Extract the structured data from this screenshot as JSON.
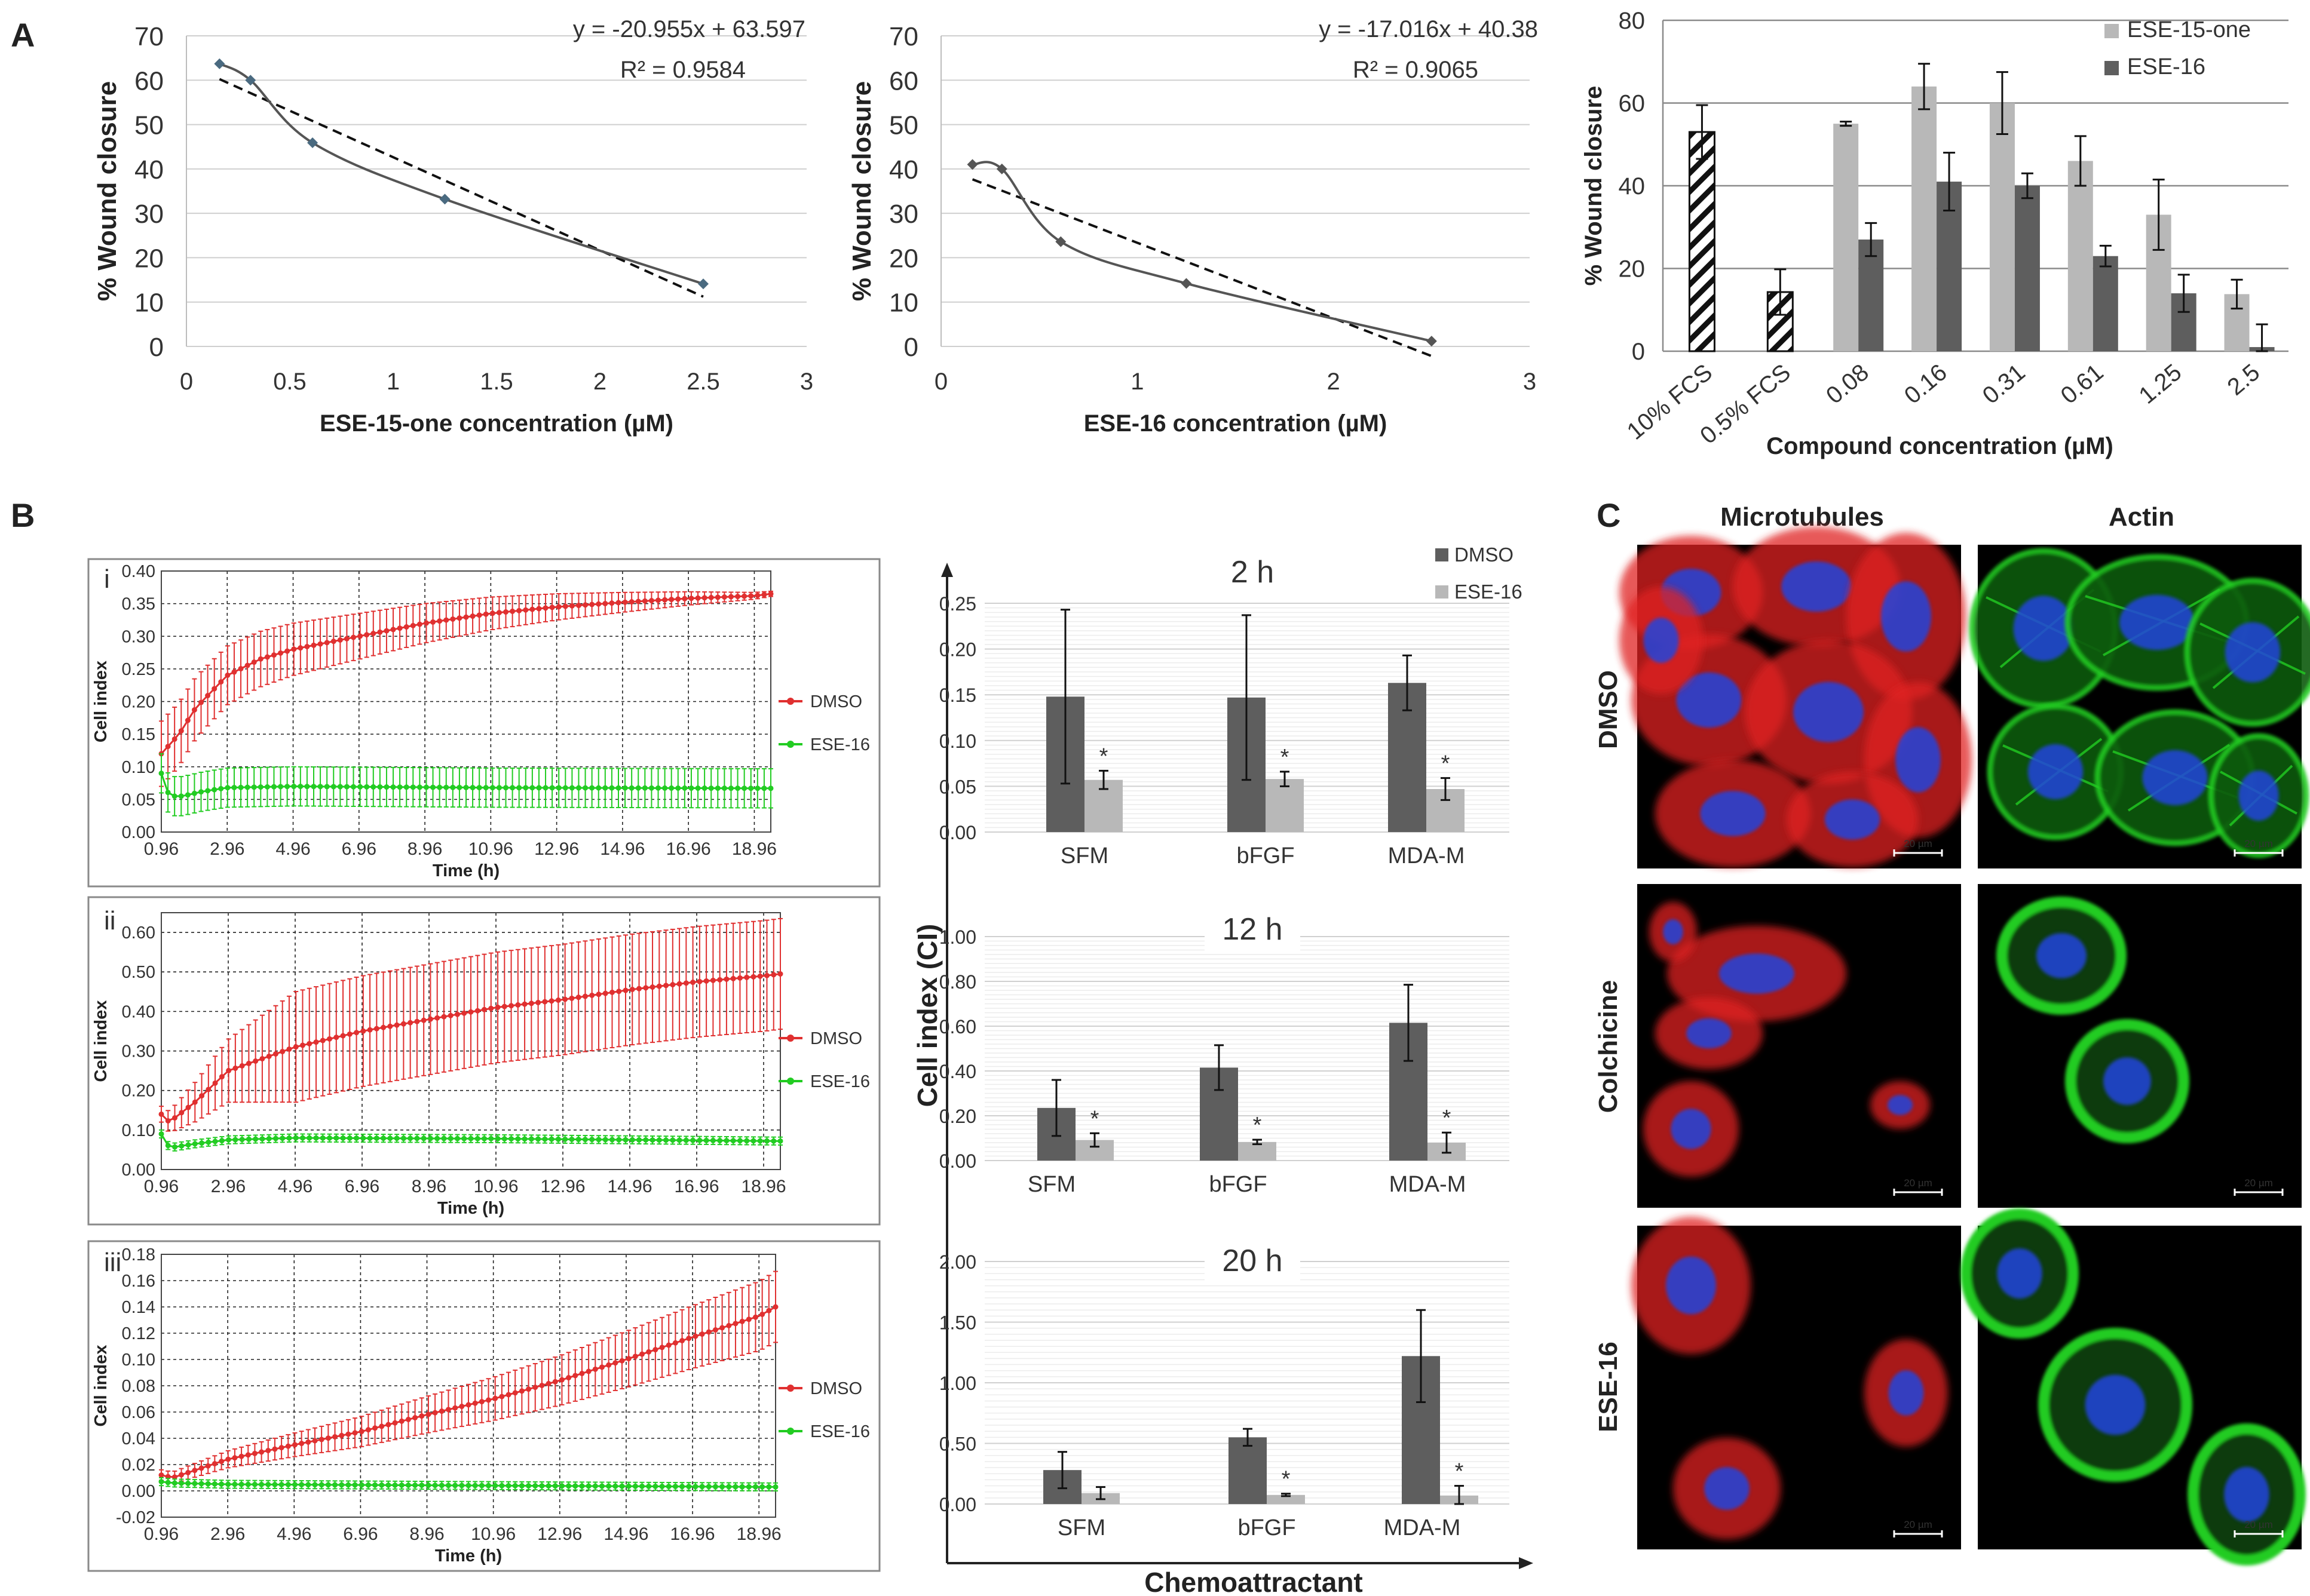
{
  "panel_labels": {
    "A": "A",
    "B": "B",
    "C": "C"
  },
  "micrograph": {
    "columns": [
      "Microtubules",
      "Actin"
    ],
    "rows": [
      "DMSO",
      "Colchicine",
      "ESE-16"
    ],
    "scale_bar": "20 µm",
    "colors": {
      "microtubules": "#e02020",
      "actin": "#22cc22",
      "nucleus": "#2244dd",
      "background": "#000000"
    }
  },
  "chart_data": [
    {
      "id": "A1",
      "type": "scatter",
      "x": [
        0.16,
        0.31,
        0.61,
        1.25,
        2.5
      ],
      "y": [
        63.7,
        60.0,
        45.9,
        33.2,
        14.1
      ],
      "trendline": {
        "equation": "y = -20.955x + 63.597",
        "r2_label": "R² = 0.9584",
        "slope": -20.955,
        "intercept": 63.597
      },
      "xlabel": "ESE-15-one concentration (µM)",
      "ylabel": "% Wound closure",
      "xlim": [
        0,
        3
      ],
      "ylim": [
        0,
        70
      ],
      "xticks": [
        "0",
        "0.5",
        "1",
        "1.5",
        "2",
        "2.5",
        "3"
      ],
      "yticks": [
        "0",
        "10",
        "20",
        "30",
        "40",
        "50",
        "60",
        "70"
      ],
      "grid": "horizontal",
      "color": "#4a6a80"
    },
    {
      "id": "A2",
      "type": "scatter",
      "x": [
        0.16,
        0.31,
        0.61,
        1.25,
        2.5
      ],
      "y": [
        41.0,
        40.0,
        23.6,
        14.2,
        1.2
      ],
      "trendline": {
        "equation": "y = -17.016x + 40.38",
        "r2_label": "R² = 0.9065",
        "slope": -17.016,
        "intercept": 40.38
      },
      "xlabel": "ESE-16 concentration (µM)",
      "ylabel": "% Wound closure",
      "xlim": [
        0,
        3
      ],
      "ylim": [
        0,
        70
      ],
      "xticks": [
        "0",
        "1",
        "2",
        "3"
      ],
      "yticks": [
        "0",
        "10",
        "20",
        "30",
        "40",
        "50",
        "60",
        "70"
      ],
      "grid": "horizontal",
      "color": "#555555"
    },
    {
      "id": "A3",
      "type": "bar",
      "controls": {
        "categories": [
          "10% FCS",
          "0.5% FCS"
        ],
        "values": [
          53.0,
          14.3
        ],
        "errors": [
          6.5,
          5.5
        ]
      },
      "categories": [
        "0.08",
        "0.16",
        "0.31",
        "0.61",
        "1.25",
        "2.5"
      ],
      "series": [
        {
          "name": "ESE-15-one",
          "values": [
            55.0,
            64.0,
            60.0,
            46.0,
            33.0,
            13.8
          ],
          "errors": [
            0.5,
            5.5,
            7.5,
            6.0,
            8.5,
            3.5
          ],
          "color": "#b8b8b8"
        },
        {
          "name": "ESE-16",
          "values": [
            27.0,
            41.0,
            40.0,
            23.0,
            14.0,
            1.0
          ],
          "errors": [
            4.0,
            7.0,
            3.0,
            2.5,
            4.5,
            5.5
          ],
          "color": "#5e5e5e"
        }
      ],
      "xlabel": "Compound concentration (µM)",
      "ylabel": "% Wound closure",
      "ylim": [
        0,
        80
      ],
      "yticks": [
        "0",
        "20",
        "40",
        "60",
        "80"
      ],
      "grid": "horizontal",
      "legend": "top-right"
    },
    {
      "id": "Bi",
      "type": "line",
      "panel_tag": "i",
      "x_range": [
        0.96,
        19.46
      ],
      "xticks": [
        "0.96",
        "2.96",
        "4.96",
        "6.96",
        "8.96",
        "10.96",
        "12.96",
        "14.96",
        "16.96",
        "18.96"
      ],
      "ylim": [
        0,
        0.4
      ],
      "yticks": [
        "0.00",
        "0.05",
        "0.10",
        "0.15",
        "0.20",
        "0.25",
        "0.30",
        "0.35",
        "0.40"
      ],
      "xlabel": "Time (h)",
      "ylabel": "Cell index",
      "series": [
        {
          "name": "DMSO",
          "color": "#e03030",
          "anchors": [
            [
              0.96,
              0.12
            ],
            [
              1.5,
              0.15
            ],
            [
              2.0,
              0.19
            ],
            [
              2.96,
              0.24
            ],
            [
              3.96,
              0.265
            ],
            [
              4.96,
              0.28
            ],
            [
              6.96,
              0.3
            ],
            [
              8.96,
              0.32
            ],
            [
              10.96,
              0.335
            ],
            [
              12.96,
              0.345
            ],
            [
              14.96,
              0.352
            ],
            [
              16.96,
              0.358
            ],
            [
              18.96,
              0.362
            ],
            [
              19.46,
              0.365
            ]
          ],
          "error": 0.05,
          "error_end": 0.004
        },
        {
          "name": "ESE-16",
          "color": "#22cc22",
          "anchors": [
            [
              0.96,
              0.09
            ],
            [
              1.2,
              0.055
            ],
            [
              1.6,
              0.055
            ],
            [
              2.2,
              0.062
            ],
            [
              2.96,
              0.068
            ],
            [
              4.96,
              0.07
            ],
            [
              10.96,
              0.068
            ],
            [
              19.46,
              0.067
            ]
          ],
          "error": 0.03
        }
      ],
      "legend": "right"
    },
    {
      "id": "Bii",
      "type": "line",
      "panel_tag": "ii",
      "x_range": [
        0.96,
        19.46
      ],
      "xticks": [
        "0.96",
        "2.96",
        "4.96",
        "6.96",
        "8.96",
        "10.96",
        "12.96",
        "14.96",
        "16.96",
        "18.96"
      ],
      "ylim": [
        0,
        0.65
      ],
      "yticks": [
        "0.00",
        "0.10",
        "0.20",
        "0.30",
        "0.40",
        "0.50",
        "0.60"
      ],
      "xlabel": "Time (h)",
      "ylabel": "Cell index",
      "series": [
        {
          "name": "DMSO",
          "color": "#e03030",
          "anchors": [
            [
              0.96,
              0.14
            ],
            [
              1.2,
              0.12
            ],
            [
              1.96,
              0.17
            ],
            [
              2.96,
              0.25
            ],
            [
              4.96,
              0.31
            ],
            [
              6.96,
              0.35
            ],
            [
              8.96,
              0.38
            ],
            [
              10.96,
              0.41
            ],
            [
              12.96,
              0.43
            ],
            [
              14.96,
              0.455
            ],
            [
              16.96,
              0.475
            ],
            [
              18.96,
              0.49
            ],
            [
              19.46,
              0.495
            ]
          ],
          "error": 0.14,
          "error_start": 0.02
        },
        {
          "name": "ESE-16",
          "color": "#22cc22",
          "anchors": [
            [
              0.96,
              0.09
            ],
            [
              1.2,
              0.055
            ],
            [
              1.96,
              0.065
            ],
            [
              2.96,
              0.075
            ],
            [
              4.96,
              0.08
            ],
            [
              10.96,
              0.078
            ],
            [
              19.46,
              0.072
            ]
          ],
          "error": 0.01
        }
      ],
      "legend": "right"
    },
    {
      "id": "Biii",
      "type": "line",
      "panel_tag": "iii",
      "x_range": [
        0.96,
        19.46
      ],
      "xticks": [
        "0.96",
        "2.96",
        "4.96",
        "6.96",
        "8.96",
        "10.96",
        "12.96",
        "14.96",
        "16.96",
        "18.96"
      ],
      "ylim": [
        -0.02,
        0.18
      ],
      "yticks": [
        "-0.02",
        "0.00",
        "0.02",
        "0.04",
        "0.06",
        "0.08",
        "0.10",
        "0.12",
        "0.14",
        "0.16",
        "0.18"
      ],
      "xlabel": "Time (h)",
      "ylabel": "Cell index",
      "series": [
        {
          "name": "DMSO",
          "color": "#e03030",
          "anchors": [
            [
              0.96,
              0.012
            ],
            [
              1.3,
              0.01
            ],
            [
              2.96,
              0.024
            ],
            [
              4.96,
              0.035
            ],
            [
              6.96,
              0.045
            ],
            [
              8.96,
              0.058
            ],
            [
              10.96,
              0.07
            ],
            [
              12.96,
              0.084
            ],
            [
              14.96,
              0.1
            ],
            [
              16.96,
              0.117
            ],
            [
              18.96,
              0.133
            ],
            [
              19.46,
              0.14
            ]
          ],
          "error": 0.004,
          "error_end": 0.027
        },
        {
          "name": "ESE-16",
          "color": "#22cc22",
          "anchors": [
            [
              0.96,
              0.007
            ],
            [
              1.3,
              0.006
            ],
            [
              2.96,
              0.005
            ],
            [
              10.96,
              0.004
            ],
            [
              19.46,
              0.003
            ]
          ],
          "error": 0.003
        }
      ],
      "legend": "right"
    },
    {
      "id": "B2h",
      "type": "bar",
      "title": "2 h",
      "categories": [
        "SFM",
        "bFGF",
        "MDA-M"
      ],
      "series": [
        {
          "name": "DMSO",
          "values": [
            0.148,
            0.147,
            0.163
          ],
          "errors": [
            0.095,
            0.09,
            0.03
          ],
          "color": "#5e5e5e"
        },
        {
          "name": "ESE-16",
          "values": [
            0.057,
            0.058,
            0.047
          ],
          "errors": [
            0.01,
            0.008,
            0.012
          ],
          "color": "#b8b8b8"
        }
      ],
      "significance": [
        "*",
        "*",
        "*"
      ],
      "ylim": [
        0,
        0.25
      ],
      "yticks": [
        "0.00",
        "0.05",
        "0.10",
        "0.15",
        "0.20",
        "0.25"
      ],
      "legend": "top-right"
    },
    {
      "id": "B12h",
      "type": "bar",
      "title": "12 h",
      "categories": [
        "SFM",
        "bFGF",
        "MDA-M"
      ],
      "series": [
        {
          "name": "DMSO",
          "values": [
            0.235,
            0.415,
            0.615
          ],
          "errors": [
            0.125,
            0.1,
            0.17
          ],
          "color": "#5e5e5e"
        },
        {
          "name": "ESE-16",
          "values": [
            0.092,
            0.083,
            0.08
          ],
          "errors": [
            0.03,
            0.01,
            0.045
          ],
          "color": "#b8b8b8"
        }
      ],
      "significance": [
        "*",
        "*",
        "*"
      ],
      "ylim": [
        0,
        1.0
      ],
      "yticks": [
        "0.00",
        "0.20",
        "0.40",
        "0.60",
        "0.80",
        "1.00"
      ]
    },
    {
      "id": "B20h",
      "type": "bar",
      "title": "20 h",
      "categories": [
        "SFM",
        "bFGF",
        "MDA-M"
      ],
      "series": [
        {
          "name": "DMSO",
          "values": [
            0.28,
            0.55,
            1.22
          ],
          "errors": [
            0.15,
            0.07,
            0.38
          ],
          "color": "#5e5e5e"
        },
        {
          "name": "ESE-16",
          "values": [
            0.09,
            0.075,
            0.07
          ],
          "errors": [
            0.05,
            0.01,
            0.08
          ],
          "color": "#b8b8b8"
        }
      ],
      "significance": [
        "",
        "*",
        "*"
      ],
      "ylim": [
        0,
        2.0
      ],
      "yticks": [
        "0.00",
        "0.50",
        "1.00",
        "1.50",
        "2.00"
      ]
    }
  ],
  "b_shared": {
    "ylabel": "Cell index (CI)",
    "xlabel": "Chemoattractant"
  }
}
